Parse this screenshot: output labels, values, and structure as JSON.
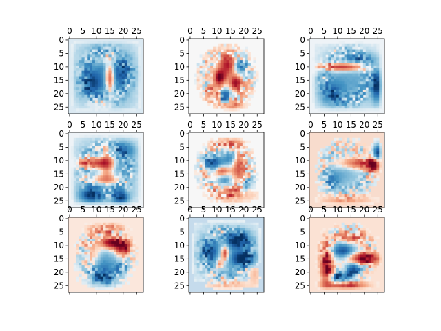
{
  "chart_data": {
    "type": "heatmap",
    "layout": {
      "rows": 3,
      "cols": 3
    },
    "colormap": {
      "name": "RdBu_r",
      "negative": "#053061",
      "zero": "#f7f7f7",
      "positive": "#67001f"
    },
    "image_size": [
      28,
      28
    ],
    "x_ticks": [
      "0",
      "5",
      "10",
      "15",
      "20",
      "25"
    ],
    "y_ticks": [
      "0",
      "5",
      "10",
      "15",
      "20",
      "25"
    ],
    "x_tick_position": "top",
    "panels": [
      {
        "name": "panel-1",
        "background": "#dbe9f2",
        "blobs": [
          {
            "x": 13.5,
            "y": 13.5,
            "sx": 8,
            "sy": 10,
            "v": -0.55
          },
          {
            "x": 15,
            "y": 14,
            "sx": 1.2,
            "sy": 4,
            "v": 1.0
          },
          {
            "x": 8,
            "y": 16,
            "sx": 2.5,
            "sy": 3,
            "v": -0.5
          },
          {
            "x": 20,
            "y": 12,
            "sx": 2.5,
            "sy": 3,
            "v": -0.4
          },
          {
            "x": 11,
            "y": 24,
            "sx": 3,
            "sy": 1.5,
            "v": 0.35
          },
          {
            "x": 13,
            "y": 7,
            "sx": 3,
            "sy": 1.5,
            "v": 0.25
          }
        ]
      },
      {
        "name": "panel-2",
        "background": "#f7f7f7",
        "blobs": [
          {
            "x": 11,
            "y": 14,
            "sx": 1.5,
            "sy": 2,
            "v": 1.0
          },
          {
            "x": 14,
            "y": 9,
            "sx": 2,
            "sy": 3,
            "v": 0.8
          },
          {
            "x": 17,
            "y": 16,
            "sx": 1.5,
            "sy": 2,
            "v": 0.85
          },
          {
            "x": 13,
            "y": 21,
            "sx": 1.5,
            "sy": 2,
            "v": -0.9
          },
          {
            "x": 19,
            "y": 10,
            "sx": 2,
            "sy": 2,
            "v": -0.6
          },
          {
            "x": 9,
            "y": 20,
            "sx": 2,
            "sy": 2,
            "v": 0.5
          },
          {
            "x": 15,
            "y": 24,
            "sx": 3,
            "sy": 1.5,
            "v": 0.45
          }
        ]
      },
      {
        "name": "panel-3",
        "background": "#eef3f7",
        "blobs": [
          {
            "x": 12,
            "y": 10,
            "sx": 6,
            "sy": 1.2,
            "v": 0.95
          },
          {
            "x": 14,
            "y": 15,
            "sx": 9,
            "sy": 8,
            "v": -0.4
          },
          {
            "x": 25,
            "y": 17,
            "sx": 1.5,
            "sy": 4,
            "v": -0.9
          },
          {
            "x": 8,
            "y": 20,
            "sx": 3,
            "sy": 3,
            "v": -0.5
          },
          {
            "x": 18,
            "y": 7,
            "sx": 4,
            "sy": 1.5,
            "v": -0.45
          }
        ]
      },
      {
        "name": "panel-4",
        "background": "#eef3f7",
        "blobs": [
          {
            "x": 9,
            "y": 11,
            "sx": 4,
            "sy": 1.5,
            "v": 0.9
          },
          {
            "x": 14,
            "y": 11,
            "sx": 2,
            "sy": 4,
            "v": 0.75
          },
          {
            "x": 13,
            "y": 17,
            "sx": 5,
            "sy": 1.5,
            "v": 0.6
          },
          {
            "x": 14,
            "y": 14,
            "sx": 9,
            "sy": 9,
            "v": -0.45
          },
          {
            "x": 8,
            "y": 23,
            "sx": 3,
            "sy": 2,
            "v": -0.75
          },
          {
            "x": 19,
            "y": 24,
            "sx": 2,
            "sy": 1.5,
            "v": -0.8
          },
          {
            "x": 20,
            "y": 6,
            "sx": 3,
            "sy": 2,
            "v": -0.5
          }
        ]
      },
      {
        "name": "panel-5",
        "background": "#f7f7f7",
        "blobs": [
          {
            "x": 9,
            "y": 11,
            "sx": 2.5,
            "sy": 2,
            "v": -0.8
          },
          {
            "x": 15,
            "y": 9,
            "sx": 2,
            "sy": 2.5,
            "v": -0.6
          },
          {
            "x": 13,
            "y": 17,
            "sx": 2,
            "sy": 2,
            "v": -0.55
          },
          {
            "x": 12,
            "y": 14,
            "sx": 2,
            "sy": 1.5,
            "v": 0.75
          },
          {
            "x": 18,
            "y": 12,
            "sx": 2,
            "sy": 4,
            "v": 0.6
          },
          {
            "x": 14,
            "y": 4,
            "sx": 3,
            "sy": 1.5,
            "v": 0.45
          },
          {
            "x": 16,
            "y": 22,
            "sx": 5,
            "sy": 2,
            "v": 0.4
          },
          {
            "x": 21,
            "y": 19,
            "sx": 2,
            "sy": 2,
            "v": -0.4
          }
        ]
      },
      {
        "name": "panel-6",
        "background": "#f8dccd",
        "blobs": [
          {
            "x": 18,
            "y": 11,
            "sx": 6,
            "sy": 1.5,
            "v": 0.65
          },
          {
            "x": 25,
            "y": 7,
            "sx": 1,
            "sy": 2,
            "v": -0.95
          },
          {
            "x": 23,
            "y": 12,
            "sx": 1.5,
            "sy": 1.5,
            "v": 1.0
          },
          {
            "x": 12,
            "y": 15,
            "sx": 5,
            "sy": 5,
            "v": -0.35
          },
          {
            "x": 8,
            "y": 17,
            "sx": 2,
            "sy": 2,
            "v": -0.3
          },
          {
            "x": 13,
            "y": 25,
            "sx": 6,
            "sy": 1.5,
            "v": 0.35
          }
        ]
      },
      {
        "name": "panel-7",
        "background": "#fbe7dc",
        "blobs": [
          {
            "x": 16,
            "y": 9,
            "sx": 3,
            "sy": 1.5,
            "v": 1.0
          },
          {
            "x": 20,
            "y": 11,
            "sx": 2,
            "sy": 2,
            "v": 0.75
          },
          {
            "x": 12,
            "y": 17,
            "sx": 4,
            "sy": 4,
            "v": -0.55
          },
          {
            "x": 9,
            "y": 14,
            "sx": 2,
            "sy": 3,
            "v": 0.4
          },
          {
            "x": 13,
            "y": 22,
            "sx": 3,
            "sy": 2,
            "v": -0.6
          },
          {
            "x": 19,
            "y": 18,
            "sx": 2,
            "sy": 2,
            "v": -0.35
          },
          {
            "x": 14,
            "y": 4,
            "sx": 4,
            "sy": 1.5,
            "v": 0.35
          }
        ]
      },
      {
        "name": "panel-8",
        "background": "#c5dbec",
        "blobs": [
          {
            "x": 14,
            "y": 13,
            "sx": 9,
            "sy": 8,
            "v": -0.35
          },
          {
            "x": 18,
            "y": 8,
            "sx": 3,
            "sy": 2,
            "v": -0.95
          },
          {
            "x": 20,
            "y": 15,
            "sx": 3,
            "sy": 2,
            "v": -0.85
          },
          {
            "x": 7,
            "y": 12,
            "sx": 2,
            "sy": 3,
            "v": -0.7
          },
          {
            "x": 13,
            "y": 13,
            "sx": 1,
            "sy": 2,
            "v": 0.95
          },
          {
            "x": 11,
            "y": 17,
            "sx": 1,
            "sy": 1.5,
            "v": 0.6
          },
          {
            "x": 14,
            "y": 25,
            "sx": 6,
            "sy": 1.5,
            "v": 0.3
          },
          {
            "x": 24,
            "y": 20,
            "sx": 2,
            "sy": 3,
            "v": 0.3
          }
        ]
      },
      {
        "name": "panel-9",
        "background": "#fbe2d4",
        "blobs": [
          {
            "x": 20,
            "y": 15,
            "sx": 4,
            "sy": 1.5,
            "v": 1.0
          },
          {
            "x": 6,
            "y": 18,
            "sx": 1.5,
            "sy": 5,
            "v": 1.0
          },
          {
            "x": 12,
            "y": 12,
            "sx": 3,
            "sy": 2,
            "v": -0.85
          },
          {
            "x": 16,
            "y": 19,
            "sx": 2,
            "sy": 2,
            "v": -0.8
          },
          {
            "x": 10,
            "y": 22,
            "sx": 3,
            "sy": 1.5,
            "v": -0.8
          },
          {
            "x": 13,
            "y": 25,
            "sx": 5,
            "sy": 1.2,
            "v": 0.75
          },
          {
            "x": 15,
            "y": 7,
            "sx": 4,
            "sy": 1.5,
            "v": 0.45
          }
        ]
      }
    ]
  }
}
